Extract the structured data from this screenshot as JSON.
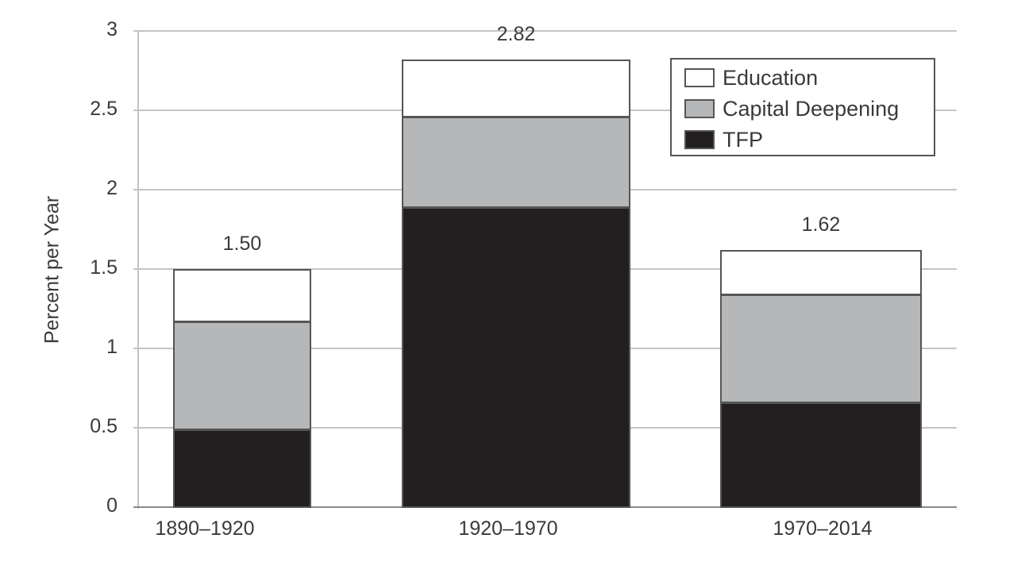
{
  "chart_data": {
    "type": "bar",
    "stacked": true,
    "title": "",
    "xlabel": "",
    "ylabel": "Percent per Year",
    "ylim": [
      0,
      3
    ],
    "yticks": [
      "0",
      "0.5",
      "1",
      "1.5",
      "2",
      "2.5",
      "3"
    ],
    "grid": true,
    "legend_position": "top-right",
    "categories": [
      "1890–1920",
      "1920–1970",
      "1970–2014"
    ],
    "series": [
      {
        "name": "TFP",
        "color": "#231f20",
        "values": [
          0.49,
          1.89,
          0.66
        ]
      },
      {
        "name": "Capital Deepening",
        "color": "#b6b7b9",
        "values": [
          0.68,
          0.57,
          0.68
        ]
      },
      {
        "name": "Education",
        "color": "#ffffff",
        "values": [
          0.33,
          0.36,
          0.28
        ]
      }
    ],
    "totals": [
      "1.50",
      "2.82",
      "1.62"
    ],
    "legend": [
      "Education",
      "Capital Deepening",
      "TFP"
    ]
  }
}
